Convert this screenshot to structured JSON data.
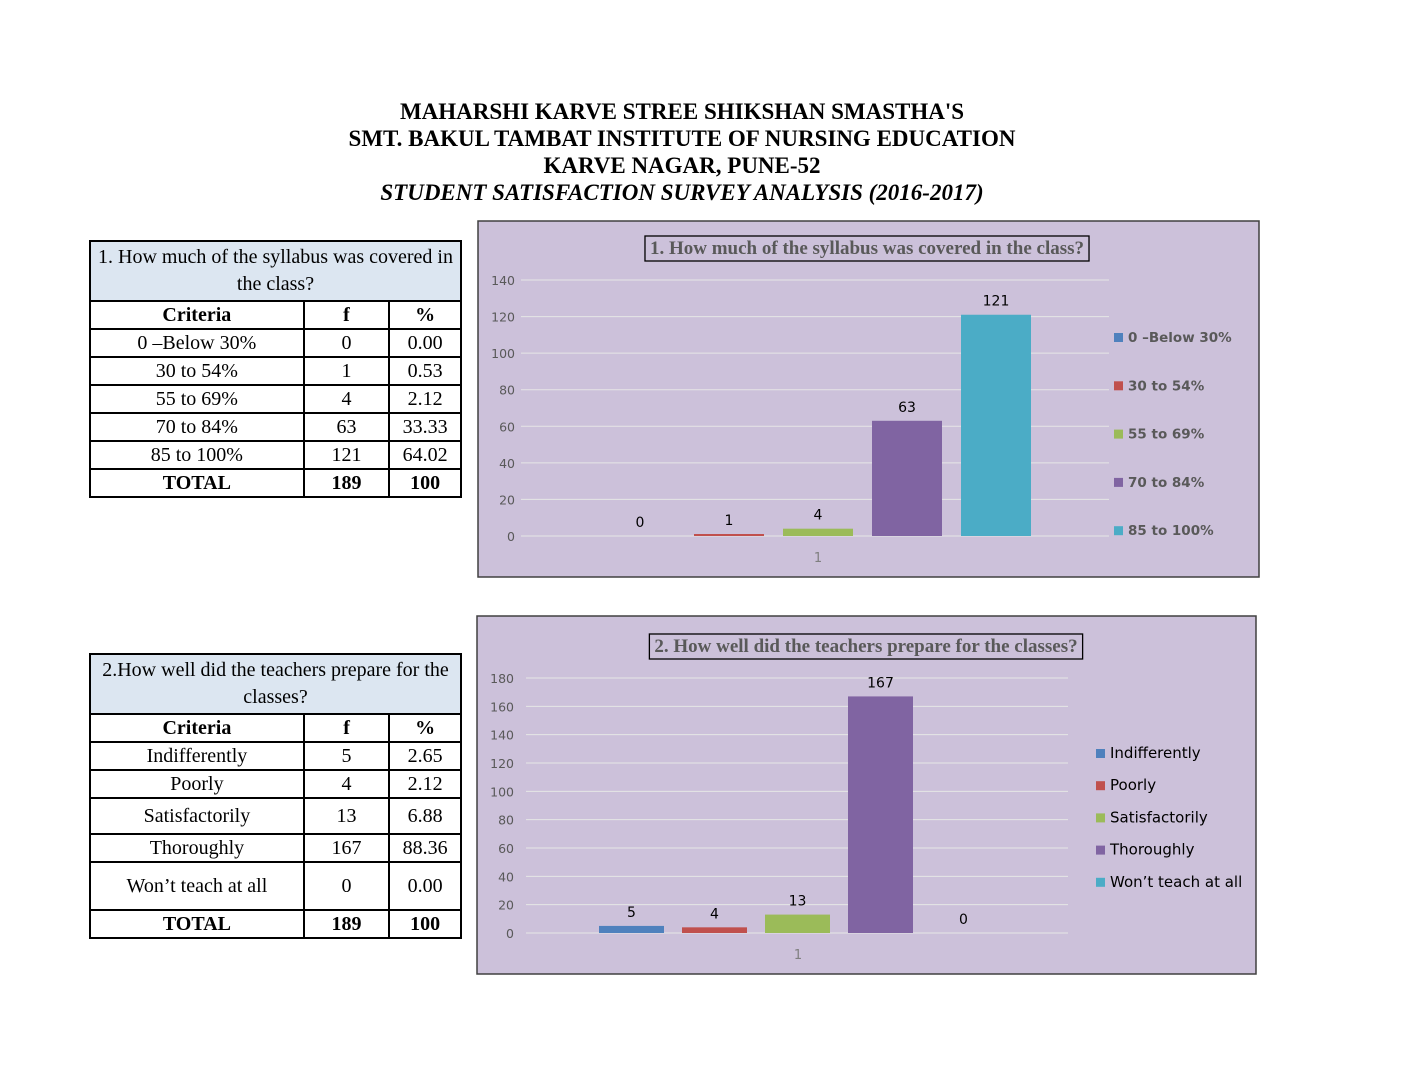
{
  "header": {
    "line1": "MAHARSHI KARVE STREE SHIKSHAN SMASTHA'S",
    "line2": "SMT. BAKUL TAMBAT INSTITUTE OF NURSING EDUCATION",
    "line3": "KARVE NAGAR, PUNE-52",
    "line4": "STUDENT SATISFACTION SURVEY ANALYSIS (2016-2017)"
  },
  "colors": {
    "chart_bg": "#ccc1da",
    "series": [
      "#4f81bd",
      "#c0504d",
      "#9bbb59",
      "#8064a2",
      "#4bacc6"
    ]
  },
  "table1": {
    "question": "1. How much of the syllabus was covered in the class?",
    "headers": [
      "Criteria",
      "f",
      "%"
    ],
    "rows": [
      [
        "0 –Below 30%",
        "0",
        "0.00"
      ],
      [
        "30 to 54%",
        "1",
        "0.53"
      ],
      [
        "55 to 69%",
        "4",
        "2.12"
      ],
      [
        "70 to 84%",
        "63",
        "33.33"
      ],
      [
        "85 to 100%",
        "121",
        "64.02"
      ]
    ],
    "total": [
      "TOTAL",
      "189",
      "100"
    ]
  },
  "table2": {
    "question": "2.How well did the teachers prepare for the classes?",
    "headers": [
      "Criteria",
      "f",
      "%"
    ],
    "rows": [
      [
        "Indifferently",
        "5",
        "2.65"
      ],
      [
        "Poorly",
        "4",
        "2.12"
      ],
      [
        "Satisfactorily",
        "13",
        "6.88"
      ],
      [
        "Thoroughly",
        "167",
        "88.36"
      ],
      [
        "Won’t teach at all",
        "0",
        "0.00"
      ]
    ],
    "total": [
      "TOTAL",
      "189",
      "100"
    ]
  },
  "chart_data": [
    {
      "type": "bar",
      "title": "1. How much of the syllabus was covered in the class?",
      "categories": [
        "1"
      ],
      "series": [
        {
          "name": "0 –Below 30%",
          "values": [
            0
          ]
        },
        {
          "name": "30 to 54%",
          "values": [
            1
          ]
        },
        {
          "name": "55 to 69%",
          "values": [
            4
          ]
        },
        {
          "name": "70 to 84%",
          "values": [
            63
          ]
        },
        {
          "name": "85 to 100%",
          "values": [
            121
          ]
        }
      ],
      "yticks": [
        0,
        20,
        40,
        60,
        80,
        100,
        120,
        140
      ],
      "ylim": [
        0,
        140
      ],
      "grid": true,
      "legend": "right"
    },
    {
      "type": "bar",
      "title": "2. How well did the teachers prepare for the classes?",
      "categories": [
        "1"
      ],
      "series": [
        {
          "name": "Indifferently",
          "values": [
            5
          ]
        },
        {
          "name": "Poorly",
          "values": [
            4
          ]
        },
        {
          "name": "Satisfactorily",
          "values": [
            13
          ]
        },
        {
          "name": "Thoroughly",
          "values": [
            167
          ]
        },
        {
          "name": "Won’t teach at all",
          "values": [
            0
          ]
        }
      ],
      "yticks": [
        0,
        20,
        40,
        60,
        80,
        100,
        120,
        140,
        160,
        180
      ],
      "ylim": [
        0,
        180
      ],
      "grid": true,
      "legend": "right"
    }
  ]
}
